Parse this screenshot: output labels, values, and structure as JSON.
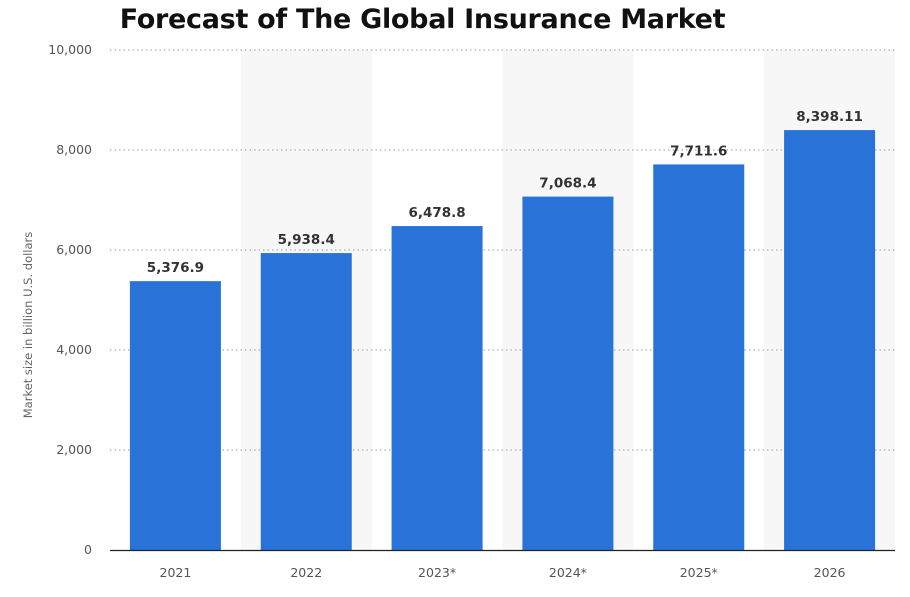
{
  "chart_data": {
    "type": "bar",
    "title": "Forecast of The Global Insurance Market",
    "xlabel": "",
    "ylabel": "Market size in billion U.S. dollars",
    "categories": [
      "2021",
      "2022",
      "2023*",
      "2024*",
      "2025*",
      "2026"
    ],
    "values": [
      5376.9,
      5938.4,
      6478.8,
      7068.4,
      7711.6,
      8398.11
    ],
    "data_labels": [
      "5,376.9",
      "5,938.4",
      "6,478.8",
      "7,068.4",
      "7,711.6",
      "8,398.11"
    ],
    "ylim": [
      0,
      10000
    ],
    "yticks": [
      0,
      2000,
      4000,
      6000,
      8000,
      10000
    ],
    "ytick_labels": [
      "0",
      "2,000",
      "4,000",
      "6,000",
      "8,000",
      "10,000"
    ],
    "grid": true,
    "bar_color": "#2872d8",
    "band_color": "#f7f7f7"
  }
}
